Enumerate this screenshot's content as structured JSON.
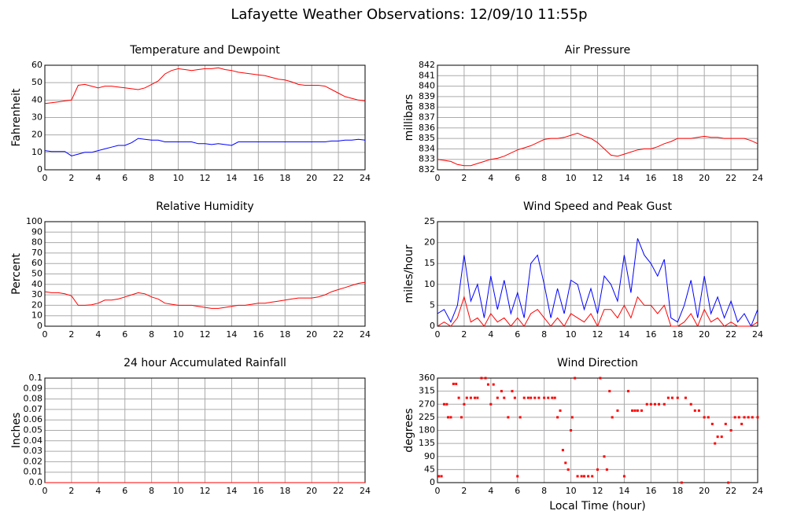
{
  "title": "Lafayette Weather Observations: 12/09/10 11:55p",
  "chart_data": [
    {
      "type": "line",
      "title": "Temperature and Dewpoint",
      "ylabel": "Fahrenheit",
      "x": [
        0,
        0.5,
        1,
        1.5,
        2,
        2.5,
        3,
        3.5,
        4,
        4.5,
        5,
        5.5,
        6,
        6.5,
        7,
        7.5,
        8,
        8.5,
        9,
        9.5,
        10,
        10.5,
        11,
        11.5,
        12,
        12.5,
        13,
        13.5,
        14,
        14.5,
        15,
        15.5,
        16,
        16.5,
        17,
        17.5,
        18,
        18.5,
        19,
        19.5,
        20,
        20.5,
        21,
        21.5,
        22,
        22.5,
        23,
        23.5,
        24
      ],
      "series": [
        {
          "color": "#ff0000",
          "values": [
            38,
            38.5,
            39,
            39.5,
            40,
            48.5,
            49,
            48,
            47,
            48,
            48,
            47.5,
            47,
            46.5,
            46,
            47,
            49,
            51,
            55,
            57,
            58,
            57.5,
            57,
            57.5,
            58,
            58,
            58.5,
            57.5,
            57,
            56,
            55.5,
            55,
            54.5,
            54,
            53,
            52,
            51.5,
            50.5,
            49,
            48.5,
            48.5,
            48.5,
            48,
            46,
            44,
            42,
            41,
            40,
            39.5
          ]
        },
        {
          "color": "#0000ff",
          "values": [
            11,
            10.5,
            10.5,
            10.5,
            8,
            9,
            10,
            10,
            11,
            12,
            13,
            14,
            14,
            15.5,
            18,
            17.5,
            17,
            17,
            16,
            16,
            16,
            16,
            16,
            15,
            15,
            14.5,
            15,
            14.5,
            14,
            16,
            16,
            16,
            16,
            16,
            16,
            16,
            16,
            16,
            16,
            16,
            16,
            16,
            16,
            16.5,
            16.5,
            17,
            17,
            17.5,
            17
          ]
        }
      ],
      "xlim": [
        0,
        24
      ],
      "xticks": [
        0,
        2,
        4,
        6,
        8,
        10,
        12,
        14,
        16,
        18,
        20,
        22,
        24
      ],
      "ylim": [
        0,
        60
      ],
      "yticks": [
        0,
        10,
        20,
        30,
        40,
        50,
        60
      ],
      "grid": true
    },
    {
      "type": "line",
      "title": "Air Pressure",
      "ylabel": "millibars",
      "x": [
        0,
        0.5,
        1,
        1.5,
        2,
        2.5,
        3,
        3.5,
        4,
        4.5,
        5,
        5.5,
        6,
        6.5,
        7,
        7.5,
        8,
        8.5,
        9,
        9.5,
        10,
        10.5,
        11,
        11.5,
        12,
        12.5,
        13,
        13.5,
        14,
        14.5,
        15,
        15.5,
        16,
        16.5,
        17,
        17.5,
        18,
        18.5,
        19,
        19.5,
        20,
        20.5,
        21,
        21.5,
        22,
        22.5,
        23,
        23.5,
        24
      ],
      "series": [
        {
          "color": "#ff0000",
          "values": [
            833,
            832.9,
            832.8,
            832.5,
            832.4,
            832.4,
            832.6,
            832.8,
            833,
            833.1,
            833.3,
            833.6,
            833.9,
            834.1,
            834.3,
            834.6,
            834.9,
            835,
            835,
            835.1,
            835.3,
            835.5,
            835.2,
            835,
            834.6,
            834,
            833.4,
            833.3,
            833.5,
            833.7,
            833.9,
            834,
            834,
            834.2,
            834.5,
            834.7,
            835,
            835,
            835,
            835.1,
            835.2,
            835.1,
            835.1,
            835,
            835,
            835,
            835,
            834.8,
            834.5
          ]
        }
      ],
      "xlim": [
        0,
        24
      ],
      "xticks": [
        0,
        2,
        4,
        6,
        8,
        10,
        12,
        14,
        16,
        18,
        20,
        22,
        24
      ],
      "ylim": [
        832,
        842
      ],
      "yticks": [
        832,
        833,
        834,
        835,
        836,
        837,
        838,
        839,
        840,
        841,
        842
      ],
      "grid": true
    },
    {
      "type": "line",
      "title": "Relative Humidity",
      "ylabel": "Percent",
      "x": [
        0,
        0.5,
        1,
        1.5,
        2,
        2.5,
        3,
        3.5,
        4,
        4.5,
        5,
        5.5,
        6,
        6.5,
        7,
        7.5,
        8,
        8.5,
        9,
        9.5,
        10,
        10.5,
        11,
        11.5,
        12,
        12.5,
        13,
        13.5,
        14,
        14.5,
        15,
        15.5,
        16,
        16.5,
        17,
        17.5,
        18,
        18.5,
        19,
        19.5,
        20,
        20.5,
        21,
        21.5,
        22,
        22.5,
        23,
        23.5,
        24
      ],
      "series": [
        {
          "color": "#ff0000",
          "values": [
            33,
            32,
            32,
            31,
            29,
            20,
            20,
            20.5,
            22,
            25,
            25,
            26,
            28,
            30,
            32,
            31,
            28,
            26,
            22,
            21,
            20,
            20,
            20,
            19,
            18,
            17,
            17,
            18,
            19,
            20,
            20,
            21,
            22,
            22,
            23,
            24,
            25,
            26,
            27,
            27,
            27,
            28,
            30,
            33,
            35,
            37,
            39,
            41,
            42
          ]
        }
      ],
      "xlim": [
        0,
        24
      ],
      "xticks": [
        0,
        2,
        4,
        6,
        8,
        10,
        12,
        14,
        16,
        18,
        20,
        22,
        24
      ],
      "ylim": [
        0,
        100
      ],
      "yticks": [
        0,
        10,
        20,
        30,
        40,
        50,
        60,
        70,
        80,
        90,
        100
      ],
      "grid": true
    },
    {
      "type": "line",
      "title": "Wind Speed and Peak Gust",
      "ylabel": "miles/hour",
      "x": [
        0,
        0.5,
        1,
        1.5,
        2,
        2.5,
        3,
        3.5,
        4,
        4.5,
        5,
        5.5,
        6,
        6.5,
        7,
        7.5,
        8,
        8.5,
        9,
        9.5,
        10,
        10.5,
        11,
        11.5,
        12,
        12.5,
        13,
        13.5,
        14,
        14.5,
        15,
        15.5,
        16,
        16.5,
        17,
        17.5,
        18,
        18.5,
        19,
        19.5,
        20,
        20.5,
        21,
        21.5,
        22,
        22.5,
        23,
        23.5,
        24
      ],
      "series": [
        {
          "color": "#0000ff",
          "values": [
            3,
            4,
            1,
            5,
            17,
            6,
            10,
            2,
            12,
            4,
            11,
            3,
            8,
            2,
            15,
            17,
            10,
            2,
            9,
            3,
            11,
            10,
            4,
            9,
            3,
            12,
            10,
            6,
            17,
            8,
            21,
            17,
            15,
            12,
            16,
            2,
            1,
            5,
            11,
            2,
            12,
            3,
            7,
            2,
            6,
            1,
            3,
            0,
            4
          ]
        },
        {
          "color": "#ff0000",
          "values": [
            0,
            1,
            0,
            2,
            7,
            1,
            2,
            0,
            3,
            1,
            2,
            0,
            2,
            0,
            3,
            4,
            2,
            0,
            2,
            0,
            3,
            2,
            1,
            3,
            0,
            4,
            4,
            2,
            5,
            2,
            7,
            5,
            5,
            3,
            5,
            0,
            0,
            1,
            3,
            0,
            4,
            1,
            2,
            0,
            1,
            0,
            0,
            0,
            1
          ]
        }
      ],
      "xlim": [
        0,
        24
      ],
      "xticks": [
        0,
        2,
        4,
        6,
        8,
        10,
        12,
        14,
        16,
        18,
        20,
        22,
        24
      ],
      "ylim": [
        0,
        25
      ],
      "yticks": [
        0,
        5,
        10,
        15,
        20,
        25
      ],
      "grid": true
    },
    {
      "type": "line",
      "title": "24 hour Accumulated Rainfall",
      "ylabel": "Inches",
      "x": [
        0,
        24
      ],
      "series": [
        {
          "color": "#ff0000",
          "values": [
            0,
            0
          ]
        }
      ],
      "xlim": [
        0,
        24
      ],
      "xticks": [
        0,
        2,
        4,
        6,
        8,
        10,
        12,
        14,
        16,
        18,
        20,
        22,
        24
      ],
      "ylim": [
        0,
        0.1
      ],
      "yticks": [
        {
          "value": 0,
          "label": "0.0"
        },
        0.01,
        0.02,
        0.03,
        0.04,
        0.05,
        0.06,
        0.07,
        0.08,
        0.09,
        0.1
      ],
      "grid": true
    },
    {
      "type": "scatter",
      "title": "Wind Direction",
      "ylabel": "degrees",
      "xlabel": "Local Time (hour)",
      "x": [
        0.1,
        0.3,
        0.5,
        0.7,
        0.8,
        1,
        1.2,
        1.4,
        1.6,
        1.8,
        2,
        2.2,
        2.5,
        2.8,
        3,
        3.3,
        3.6,
        3.8,
        4,
        4.2,
        4.5,
        4.8,
        5,
        5.3,
        5.6,
        5.8,
        6,
        6.2,
        6.5,
        6.8,
        7,
        7.3,
        7.6,
        8,
        8.3,
        8.6,
        8.8,
        9,
        9.2,
        9.4,
        9.6,
        9.8,
        10,
        10.1,
        10.3,
        10.5,
        10.8,
        11,
        11.3,
        11.6,
        12,
        12.2,
        12.5,
        12.7,
        12.9,
        13.1,
        13.5,
        14,
        14.3,
        14.6,
        14.8,
        15,
        15.3,
        15.7,
        16,
        16.3,
        16.6,
        17,
        17.3,
        17.6,
        18,
        18.3,
        18.6,
        19,
        19.3,
        19.6,
        20,
        20.3,
        20.6,
        20.8,
        21,
        21.3,
        21.6,
        21.8,
        22,
        22.3,
        22.6,
        22.8,
        23,
        23.3,
        23.6,
        24
      ],
      "values": [
        22,
        22,
        270,
        270,
        225,
        225,
        340,
        340,
        292,
        225,
        270,
        292,
        292,
        292,
        292,
        360,
        360,
        338,
        270,
        338,
        292,
        315,
        292,
        225,
        315,
        292,
        22,
        225,
        292,
        292,
        292,
        292,
        292,
        292,
        292,
        292,
        292,
        225,
        248,
        112,
        68,
        45,
        180,
        225,
        360,
        22,
        22,
        22,
        22,
        22,
        45,
        360,
        90,
        45,
        315,
        225,
        248,
        22,
        315,
        248,
        248,
        248,
        248,
        270,
        270,
        270,
        270,
        270,
        292,
        292,
        292,
        0,
        292,
        270,
        248,
        248,
        225,
        225,
        202,
        135,
        158,
        158,
        202,
        0,
        180,
        225,
        225,
        202,
        225,
        225,
        225,
        225
      ],
      "color": "#ff0000",
      "xlim": [
        0,
        24
      ],
      "xticks": [
        0,
        2,
        4,
        6,
        8,
        10,
        12,
        14,
        16,
        18,
        20,
        22,
        24
      ],
      "ylim": [
        0,
        360
      ],
      "yticks": [
        0,
        45,
        90,
        135,
        180,
        225,
        270,
        315,
        360
      ],
      "grid": true
    }
  ]
}
